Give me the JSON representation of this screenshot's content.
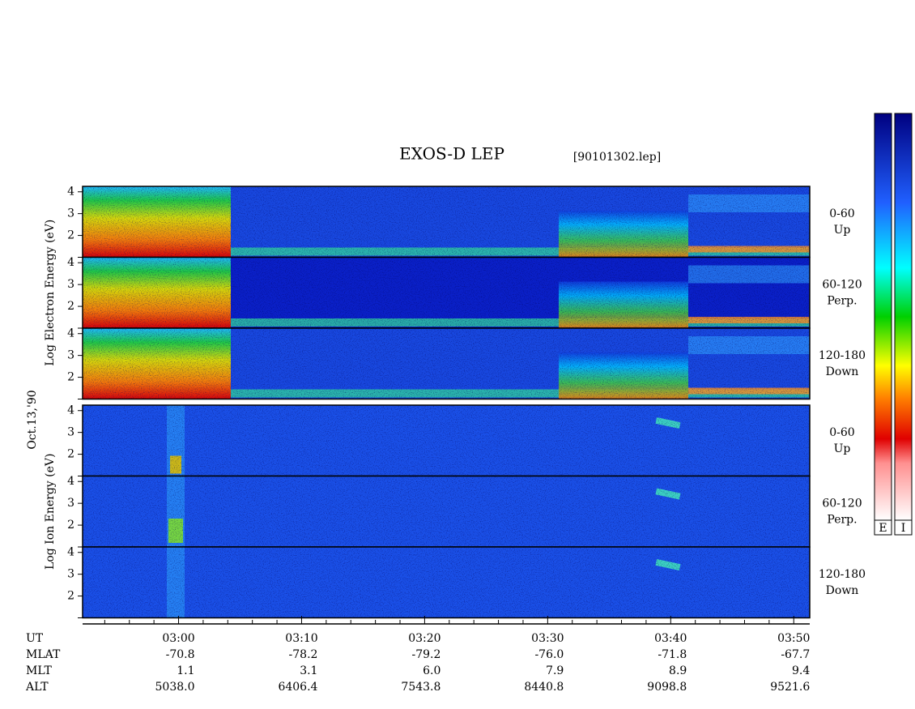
{
  "chart_data": {
    "type": "spectrogram",
    "title": "EXOS-D LEP",
    "subtitle": "[90101302.lep]",
    "date_label": "Oct.13,'90",
    "xlim": [
      172.2,
      231.3
    ],
    "xticks": [
      {
        "value": 180,
        "label": "03:00"
      },
      {
        "value": 190,
        "label": "03:10"
      },
      {
        "value": 200,
        "label": "03:20"
      },
      {
        "value": 210,
        "label": "03:30"
      },
      {
        "value": 220,
        "label": "03:40"
      },
      {
        "value": 230,
        "label": "03:50"
      }
    ],
    "xminorticks": [
      174,
      176,
      178,
      182,
      184,
      186,
      188,
      192,
      194,
      196,
      198,
      202,
      204,
      206,
      208,
      212,
      214,
      216,
      218,
      222,
      224,
      226,
      228
    ],
    "ylim": [
      1,
      4.25
    ],
    "yticks": [
      1,
      2,
      3,
      4
    ],
    "groups": [
      {
        "ylabel": "Log Electron Energy (eV)",
        "species": "electron",
        "panels": [
          {
            "angle": "0-60",
            "direction": "Up"
          },
          {
            "angle": "60-120",
            "direction": "Perp."
          },
          {
            "angle": "120-180",
            "direction": "Down"
          }
        ]
      },
      {
        "ylabel": "Log Ion Energy (eV)",
        "species": "ion",
        "panels": [
          {
            "angle": "0-60",
            "direction": "Up"
          },
          {
            "angle": "60-120",
            "direction": "Perp."
          },
          {
            "angle": "120-180",
            "direction": "Down"
          }
        ]
      }
    ],
    "orbit": {
      "time_name": "UT",
      "rows": [
        {
          "name": "MLAT",
          "values": [
            "-70.8",
            "-78.2",
            "-79.2",
            "-76.0",
            "-71.8",
            "-67.7"
          ]
        },
        {
          "name": "MLT",
          "values": [
            "1.1",
            "3.1",
            "6.0",
            "7.9",
            "8.9",
            "9.4"
          ]
        },
        {
          "name": "ALT",
          "values": [
            "5038.0",
            "6406.4",
            "7543.8",
            "8440.8",
            "9098.8",
            "9521.6"
          ]
        }
      ]
    },
    "colorbars": [
      "E",
      "I"
    ]
  }
}
